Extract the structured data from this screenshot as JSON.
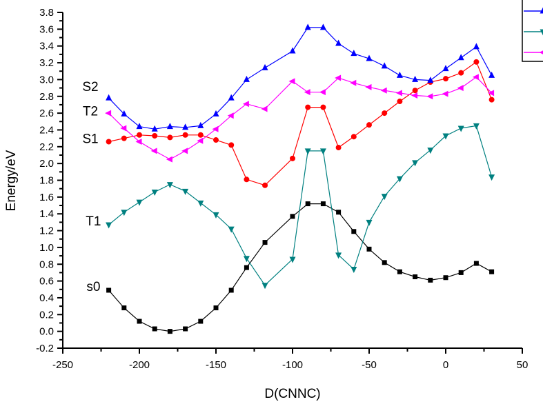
{
  "chart_data": {
    "type": "line",
    "title": "",
    "xlabel": "D(CNNC)",
    "ylabel": "Energy/eV",
    "xlim": [
      -250,
      50
    ],
    "ylim": [
      -0.2,
      3.8
    ],
    "x_ticks": [
      -250,
      -200,
      -150,
      -100,
      -50,
      0,
      50
    ],
    "x_tick_labels": [
      "-250",
      "-200",
      "-150",
      "-100",
      "-50",
      "0",
      "50"
    ],
    "y_ticks": [
      -0.2,
      0.0,
      0.2,
      0.4,
      0.6,
      0.8,
      1.0,
      1.2,
      1.4,
      1.6,
      1.8,
      2.0,
      2.2,
      2.4,
      2.6,
      2.8,
      3.0,
      3.2,
      3.4,
      3.6,
      3.8
    ],
    "y_tick_labels": [
      "-0.2",
      "0.0",
      "0.2",
      "0.4",
      "0.6",
      "0.8",
      "1.0",
      "1.2",
      "1.4",
      "1.6",
      "1.8",
      "2.0",
      "2.2",
      "2.4",
      "2.6",
      "2.8",
      "3.0",
      "3.2",
      "3.4",
      "3.6",
      "3.8"
    ],
    "grid": false,
    "legend": {
      "placement": "top-right",
      "entries": [
        "",
        "",
        ""
      ],
      "note": "legend box cropped at right edge; only line samples visible"
    },
    "x": [
      -220,
      -210,
      -200,
      -190,
      -180,
      -170,
      -160,
      -150,
      -140,
      -130,
      -118,
      -100,
      -90,
      -80,
      -70,
      -60,
      -50,
      -40,
      -30,
      -20,
      -10,
      0,
      10,
      20,
      30
    ],
    "series": [
      {
        "name": "s0",
        "color": "#000000",
        "marker": "square",
        "values": [
          0.49,
          0.28,
          0.12,
          0.03,
          0.0,
          0.03,
          0.12,
          0.28,
          0.49,
          0.76,
          1.06,
          1.37,
          1.52,
          1.52,
          1.42,
          1.19,
          0.98,
          0.82,
          0.71,
          0.65,
          0.61,
          0.64,
          0.7,
          0.81,
          0.71
        ]
      },
      {
        "name": "T1",
        "color": "#008080",
        "marker": "triangle-down",
        "values": [
          1.27,
          1.42,
          1.54,
          1.66,
          1.75,
          1.67,
          1.53,
          1.39,
          1.22,
          0.87,
          0.55,
          0.86,
          2.15,
          2.15,
          0.91,
          0.74,
          1.3,
          1.61,
          1.82,
          2.01,
          2.16,
          2.33,
          2.42,
          2.45,
          1.84
        ]
      },
      {
        "name": "S1",
        "color": "#ff0000",
        "marker": "circle",
        "values": [
          2.26,
          2.3,
          2.34,
          2.33,
          2.31,
          2.34,
          2.34,
          2.28,
          2.22,
          1.81,
          1.74,
          2.06,
          2.67,
          2.67,
          2.19,
          2.32,
          2.46,
          2.6,
          2.74,
          2.87,
          2.97,
          3.01,
          3.08,
          3.21,
          2.76
        ]
      },
      {
        "name": "T2",
        "color": "#ff00ff",
        "marker": "triangle-left",
        "values": [
          2.6,
          2.42,
          2.26,
          2.15,
          2.05,
          2.15,
          2.27,
          2.41,
          2.57,
          2.71,
          2.65,
          2.98,
          2.85,
          2.85,
          3.02,
          2.96,
          2.91,
          2.87,
          2.84,
          2.81,
          2.8,
          2.83,
          2.9,
          3.03,
          2.84
        ]
      },
      {
        "name": "S2",
        "color": "#0000ff",
        "marker": "triangle-up",
        "values": [
          2.78,
          2.59,
          2.44,
          2.41,
          2.44,
          2.43,
          2.45,
          2.59,
          2.78,
          3.0,
          3.14,
          3.34,
          3.62,
          3.62,
          3.43,
          3.31,
          3.25,
          3.16,
          3.05,
          3.0,
          2.99,
          3.13,
          3.26,
          3.39,
          3.05
        ]
      }
    ],
    "annotations": [
      {
        "text": "S2",
        "x": -232,
        "y": 2.92
      },
      {
        "text": "T2",
        "x": -232,
        "y": 2.63
      },
      {
        "text": "S1",
        "x": -232,
        "y": 2.3
      },
      {
        "text": "T1",
        "x": -230,
        "y": 1.32
      },
      {
        "text": "s0",
        "x": -230,
        "y": 0.54
      }
    ],
    "legend_series_order": [
      "S2",
      "T1",
      "T2"
    ]
  }
}
